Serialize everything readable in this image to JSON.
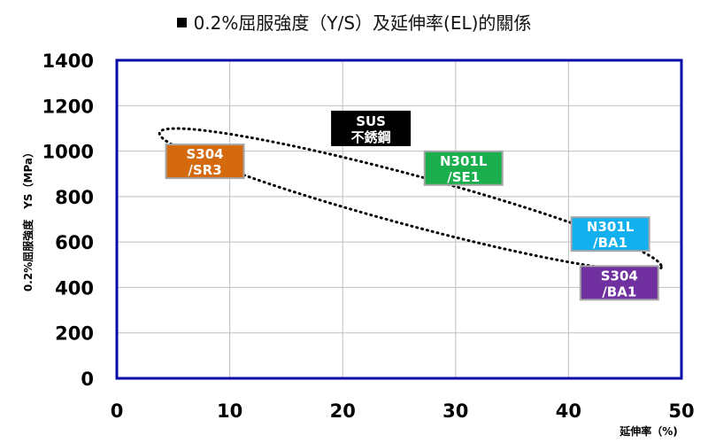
{
  "title": "0.2%屈服強度（Y/S）及延伸率(EL)的關係",
  "chart_data": {
    "type": "scatter",
    "title": "0.2%屈服強度（Y/S）及延伸率(EL)的關係",
    "xlabel": "延伸率（%)",
    "ylabel": "0.2%屈服強度　YS（MPa）",
    "xlim": [
      0,
      50
    ],
    "ylim": [
      0,
      1400
    ],
    "x_ticks": [
      "0",
      "10",
      "20",
      "30",
      "40",
      "50"
    ],
    "y_ticks": [
      "0",
      "200",
      "400",
      "600",
      "800",
      "1000",
      "1200",
      "1400"
    ],
    "grid": true,
    "points": [
      {
        "line1": "S304",
        "line2": "/SR3",
        "x": 7.8,
        "y": 955,
        "color": "#D5690E"
      },
      {
        "line1": "SUS",
        "line2": "不銹鋼",
        "x": 22.5,
        "y": 1100,
        "color": "#000000"
      },
      {
        "line1": "N301L",
        "line2": "/SE1",
        "x": 30.7,
        "y": 925,
        "color": "#1AAE4C"
      },
      {
        "line1": "N301L",
        "line2": "/BA1",
        "x": 43.7,
        "y": 635,
        "color": "#13B0F0"
      },
      {
        "line1": "S304",
        "line2": "/BA1",
        "x": 44.5,
        "y": 420,
        "color": "#7030A0"
      }
    ],
    "ellipse": {
      "cx": 26,
      "cy": 785,
      "rx": 23,
      "ry": 305,
      "rotation_deg": 15
    }
  }
}
